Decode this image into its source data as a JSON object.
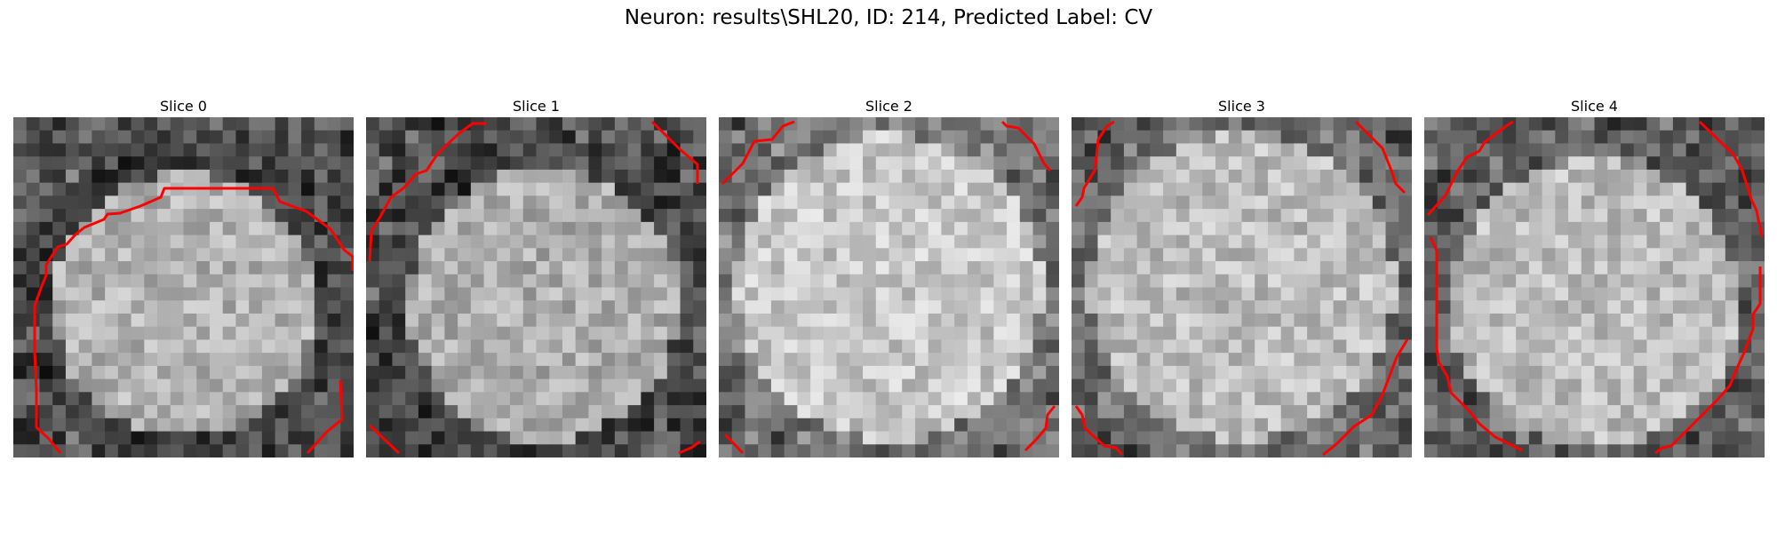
{
  "figure": {
    "title": "Neuron: results\\SHL20, ID: 214, Predicted Label: CV"
  },
  "colors": {
    "contour": "#ff0000",
    "background": "#ffffff",
    "colormap": "gray"
  },
  "panels": [
    {
      "title": "Slice 0"
    },
    {
      "title": "Slice 1"
    },
    {
      "title": "Slice 2"
    },
    {
      "title": "Slice 3"
    },
    {
      "title": "Slice 4"
    }
  ]
}
